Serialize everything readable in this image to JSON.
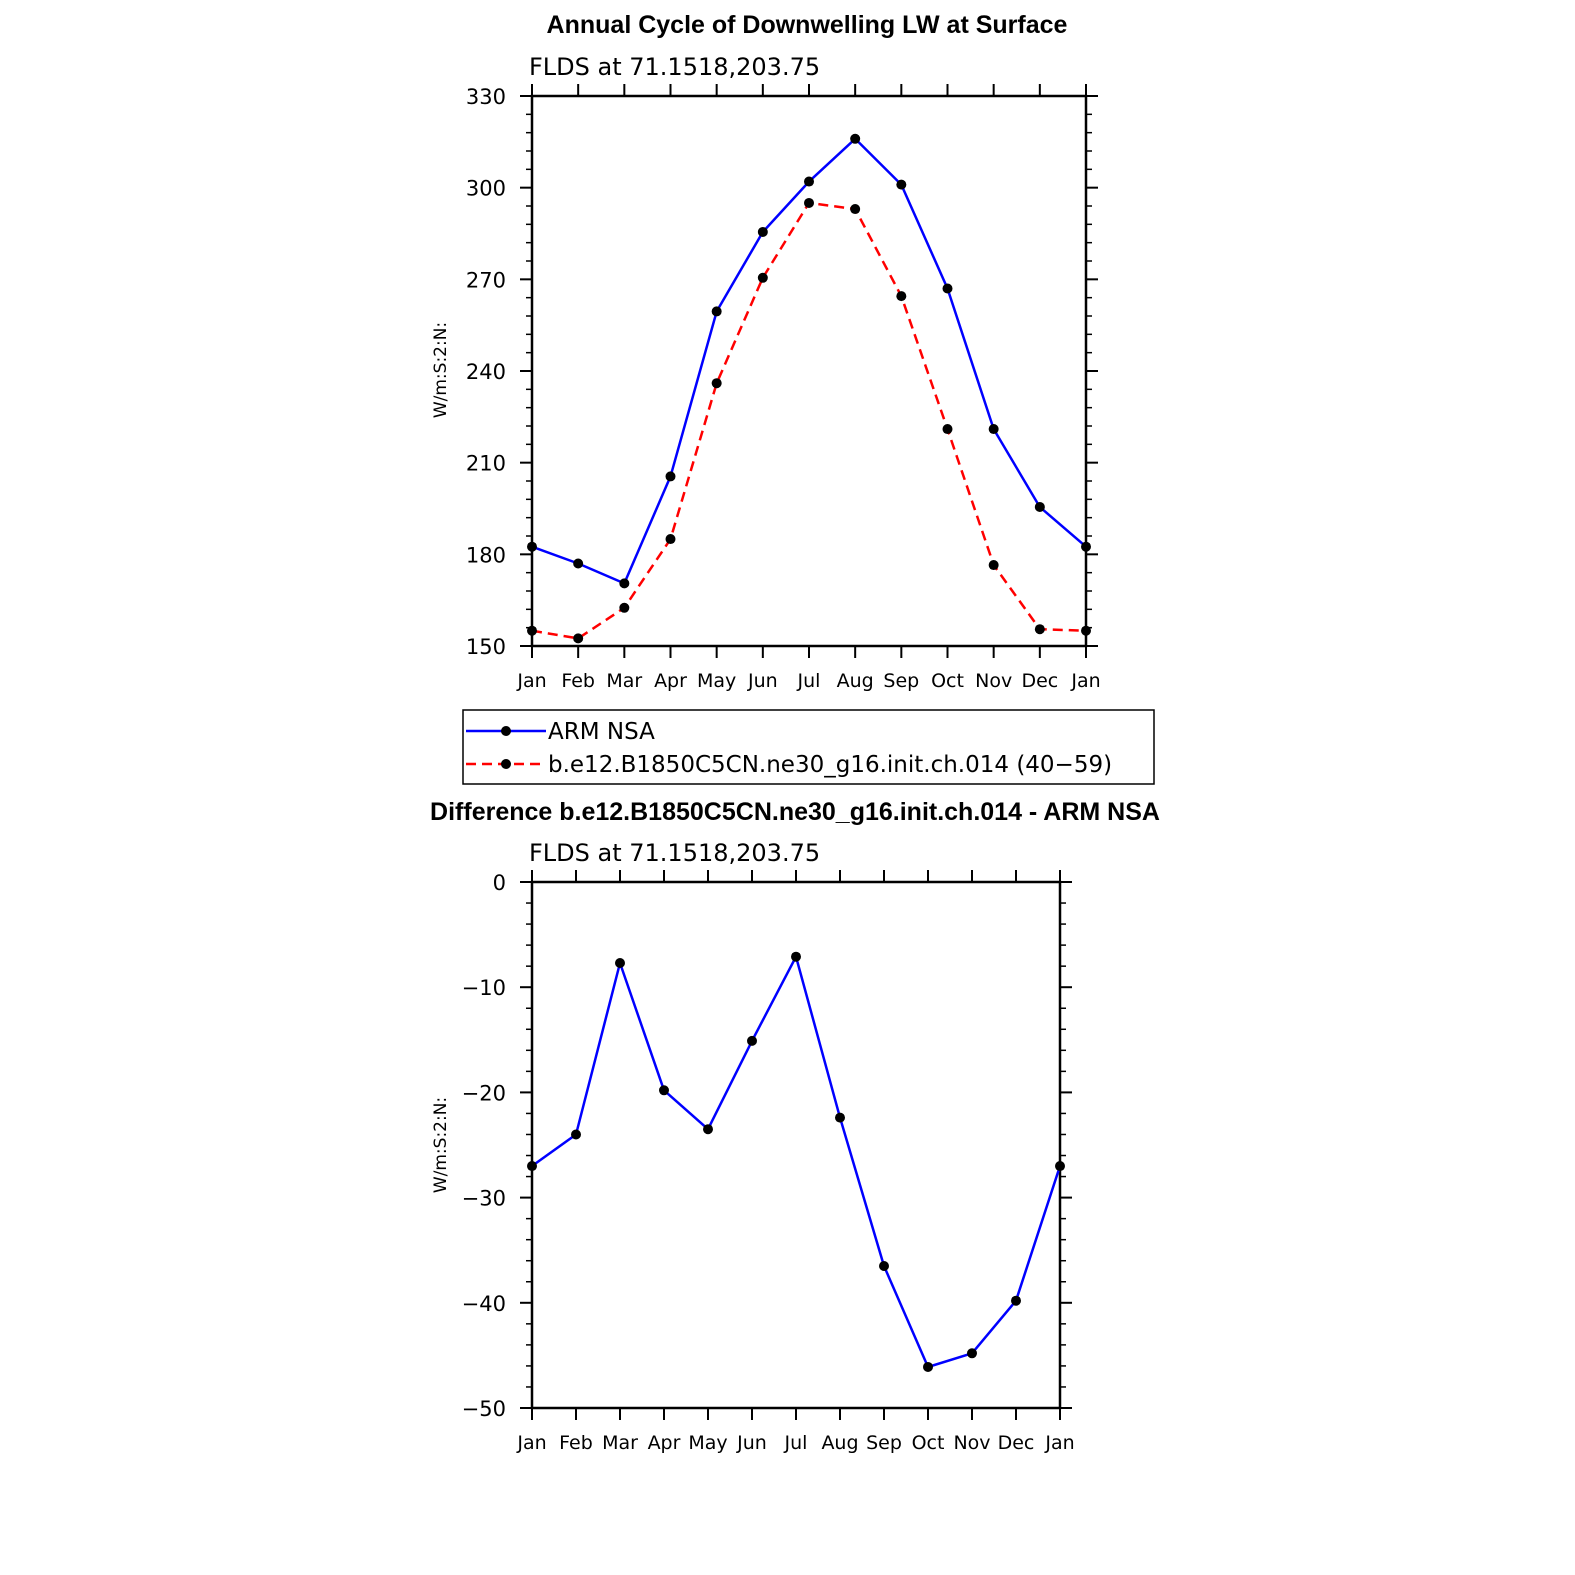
{
  "chart_data": [
    {
      "type": "line",
      "title": "Annual Cycle of Downwelling LW at Surface",
      "subtitle": "FLDS at 71.1518,203.75",
      "ylabel": "W/m:S:2:N:",
      "ylim": [
        150,
        330
      ],
      "yticks": [
        150,
        180,
        210,
        240,
        270,
        300,
        330
      ],
      "categories": [
        "Jan",
        "Feb",
        "Mar",
        "Apr",
        "May",
        "Jun",
        "Jul",
        "Aug",
        "Sep",
        "Oct",
        "Nov",
        "Dec",
        "Jan"
      ],
      "grid": false,
      "legend_position": "below",
      "series": [
        {
          "name": "ARM NSA",
          "color": "#0000ff",
          "dash": "solid",
          "values": [
            182.5,
            177,
            170.5,
            205.5,
            259.5,
            285.5,
            302,
            316,
            301,
            267,
            221,
            195.5,
            182.5
          ]
        },
        {
          "name": "b.e12.B1850C5CN.ne30_g16.init.ch.014 (40−59)",
          "color": "#ff0000",
          "dash": "dashed",
          "values": [
            155,
            152.5,
            162.5,
            185,
            236,
            270.5,
            295,
            293,
            264.5,
            221,
            176.5,
            155.5,
            155
          ]
        }
      ]
    },
    {
      "type": "line",
      "title": "Difference b.e12.B1850C5CN.ne30_g16.init.ch.014 - ARM NSA",
      "subtitle": "FLDS at 71.1518,203.75",
      "ylabel": "W/m:S:2:N:",
      "ylim": [
        -50,
        0
      ],
      "yticks": [
        -50,
        -40,
        -30,
        -20,
        -10,
        0
      ],
      "categories": [
        "Jan",
        "Feb",
        "Mar",
        "Apr",
        "May",
        "Jun",
        "Jul",
        "Aug",
        "Sep",
        "Oct",
        "Nov",
        "Dec",
        "Jan"
      ],
      "grid": false,
      "series": [
        {
          "color": "#0000ff",
          "dash": "solid",
          "values": [
            -27,
            -24,
            -7.7,
            -19.8,
            -23.5,
            -15.1,
            -7.1,
            -22.4,
            -36.5,
            -46.1,
            -44.8,
            -39.8,
            -27
          ]
        }
      ]
    }
  ]
}
